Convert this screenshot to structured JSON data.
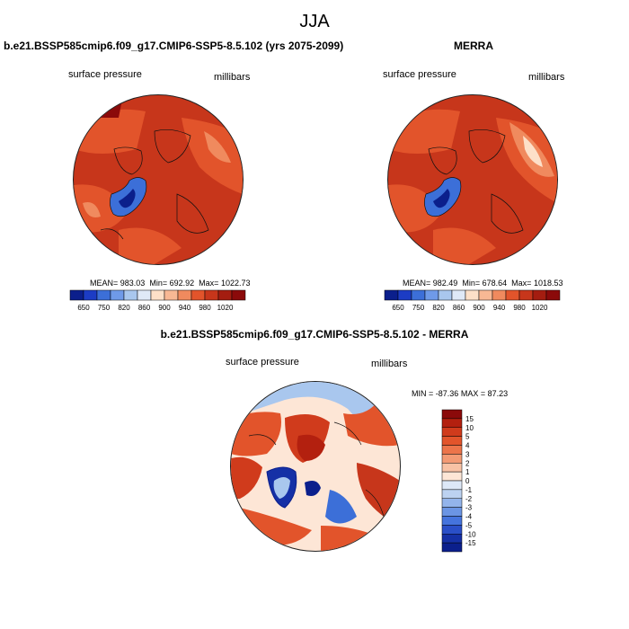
{
  "page": {
    "title": "JJA"
  },
  "colors": {
    "warm_dark": "#8b0a0a",
    "warm_main": "#c7361b",
    "warm_mid": "#e2542b",
    "warm_light": "#f08a5e",
    "pale": "#fde0c8",
    "cool_light": "#a9c7ee",
    "cool_mid": "#3c6fd8",
    "cool_dark": "#0b1f8c"
  },
  "chart_data": [
    {
      "type": "heatmap",
      "title": "b.e21.BSSP585cmip6.f09_g17.CMIP6-SSP5-8.5.102 (yrs 2075-2099)",
      "variable": "surface pressure",
      "units": "millibars",
      "stats": {
        "mean_label": "MEAN=",
        "mean": "983.03",
        "min_label": "Min=",
        "min": "692.92",
        "max_label": "Max=",
        "max": "1022.73"
      },
      "colorbar": {
        "orientation": "horizontal",
        "ticks": [
          "650",
          "750",
          "820",
          "860",
          "900",
          "940",
          "980",
          "1020"
        ],
        "colors": [
          "#0b1f8c",
          "#1c3cc4",
          "#3c6fd8",
          "#6f9ae8",
          "#a9c7ee",
          "#dfe9f7",
          "#fde0c8",
          "#f8b894",
          "#f08a5e",
          "#e2542b",
          "#c7361b",
          "#a41d10",
          "#8b0a0a"
        ]
      }
    },
    {
      "type": "heatmap",
      "title": "MERRA",
      "variable": "surface pressure",
      "units": "millibars",
      "stats": {
        "mean_label": "MEAN=",
        "mean": "982.49",
        "min_label": "Min=",
        "min": "678.64",
        "max_label": "Max=",
        "max": "1018.53"
      },
      "colorbar": {
        "orientation": "horizontal",
        "ticks": [
          "650",
          "750",
          "820",
          "860",
          "900",
          "940",
          "980",
          "1020"
        ],
        "colors": [
          "#0b1f8c",
          "#1c3cc4",
          "#3c6fd8",
          "#6f9ae8",
          "#a9c7ee",
          "#dfe9f7",
          "#fde0c8",
          "#f8b894",
          "#f08a5e",
          "#e2542b",
          "#c7361b",
          "#a41d10",
          "#8b0a0a"
        ]
      }
    },
    {
      "type": "heatmap",
      "title": "b.e21.BSSP585cmip6.f09_g17.CMIP6-SSP5-8.5.102 - MERRA",
      "variable": "surface pressure",
      "units": "millibars",
      "stats": {
        "min_label": "MIN =",
        "min": "-87.36",
        "max_label": "MAX =",
        "max": "87.23"
      },
      "colorbar": {
        "orientation": "vertical",
        "ticks": [
          "15",
          "10",
          "5",
          "4",
          "3",
          "2",
          "1",
          "0",
          "-1",
          "-2",
          "-3",
          "-4",
          "-5",
          "-10",
          "-15"
        ],
        "colors": [
          "#8b0a0a",
          "#b3200f",
          "#d03b1c",
          "#e2542b",
          "#ec744a",
          "#f39a74",
          "#f8c2a5",
          "#fde6d6",
          "#dde8f7",
          "#bcd2f1",
          "#93b4eb",
          "#6b95e4",
          "#4574dd",
          "#2a4fc8",
          "#1530a6",
          "#0b1f8c"
        ]
      }
    }
  ]
}
